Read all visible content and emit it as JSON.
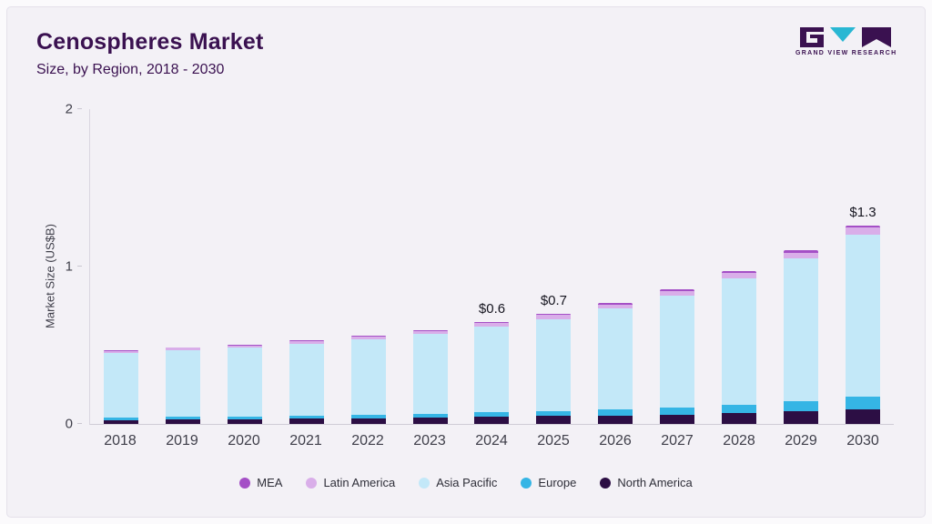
{
  "header": {
    "title": "Cenospheres Market",
    "subtitle": "Size, by Region, 2018 - 2030"
  },
  "logo": {
    "text": "GRAND VIEW RESEARCH",
    "dark_color": "#3a1150",
    "teal_color": "#29b7d3"
  },
  "panel": {
    "background": "#f3f1f6"
  },
  "chart_data": {
    "type": "bar",
    "stacked": true,
    "title": "Cenospheres Market Size, by Region, 2018 - 2030",
    "xlabel": "",
    "ylabel": "Market Size (US$B)",
    "ylim": [
      0,
      2
    ],
    "yticks": [
      0,
      1,
      2
    ],
    "grid": false,
    "legend_position": "bottom",
    "categories": [
      "2018",
      "2019",
      "2020",
      "2021",
      "2022",
      "2023",
      "2024",
      "2025",
      "2026",
      "2027",
      "2028",
      "2029",
      "2030"
    ],
    "series": [
      {
        "name": "North America",
        "color": "#2c0e44",
        "values": [
          0.025,
          0.028,
          0.03,
          0.033,
          0.036,
          0.04,
          0.045,
          0.05,
          0.055,
          0.06,
          0.068,
          0.08,
          0.095
        ]
      },
      {
        "name": "Europe",
        "color": "#35b5e5",
        "values": [
          0.015,
          0.016,
          0.018,
          0.02,
          0.022,
          0.025,
          0.028,
          0.032,
          0.038,
          0.046,
          0.056,
          0.066,
          0.078
        ]
      },
      {
        "name": "Asia Pacific",
        "color": "#c3e8f8",
        "values": [
          0.41,
          0.425,
          0.435,
          0.455,
          0.48,
          0.505,
          0.545,
          0.585,
          0.64,
          0.71,
          0.8,
          0.905,
          1.03
        ]
      },
      {
        "name": "Latin America",
        "color": "#d9aee9",
        "values": [
          0.013,
          0.014,
          0.015,
          0.016,
          0.018,
          0.02,
          0.022,
          0.024,
          0.027,
          0.03,
          0.034,
          0.038,
          0.043
        ]
      },
      {
        "name": "MEA",
        "color": "#a44fc6",
        "values": [
          0.005,
          0.005,
          0.006,
          0.006,
          0.007,
          0.007,
          0.008,
          0.009,
          0.01,
          0.011,
          0.012,
          0.013,
          0.015
        ]
      }
    ],
    "totals": [
      0.47,
      0.49,
      0.5,
      0.53,
      0.56,
      0.6,
      0.65,
      0.7,
      0.77,
      0.86,
      0.97,
      1.1,
      1.26
    ],
    "annotations": [
      {
        "category": "2024",
        "text": "$0.6"
      },
      {
        "category": "2025",
        "text": "$0.7"
      },
      {
        "category": "2030",
        "text": "$1.3"
      }
    ],
    "legend": [
      "MEA",
      "Latin America",
      "Asia Pacific",
      "Europe",
      "North America"
    ]
  }
}
